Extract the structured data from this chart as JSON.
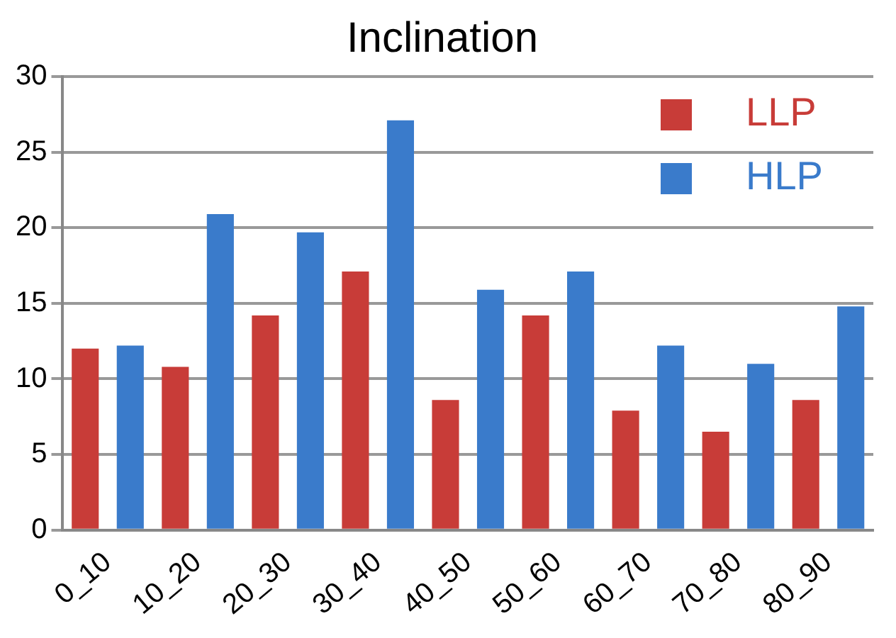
{
  "chart_data": {
    "type": "bar",
    "title": "Inclination",
    "categories": [
      "0_10",
      "10_20",
      "20_30",
      "30_40",
      "40_50",
      "50_60",
      "60_70",
      "70_80",
      "80_90"
    ],
    "series": [
      {
        "name": "LLP",
        "color": "#c83c38",
        "values": [
          12,
          10.8,
          14.2,
          17.1,
          8.6,
          14.2,
          7.9,
          6.5,
          8.6
        ]
      },
      {
        "name": "HLP",
        "color": "#3a7bcb",
        "values": [
          12.2,
          20.9,
          19.7,
          27.1,
          15.9,
          17.1,
          12.2,
          11,
          14.8
        ]
      }
    ],
    "ylim": [
      0,
      30
    ],
    "yticks": [
      0,
      5,
      10,
      15,
      20,
      25,
      30
    ],
    "grid": "y",
    "legend": "top right"
  }
}
